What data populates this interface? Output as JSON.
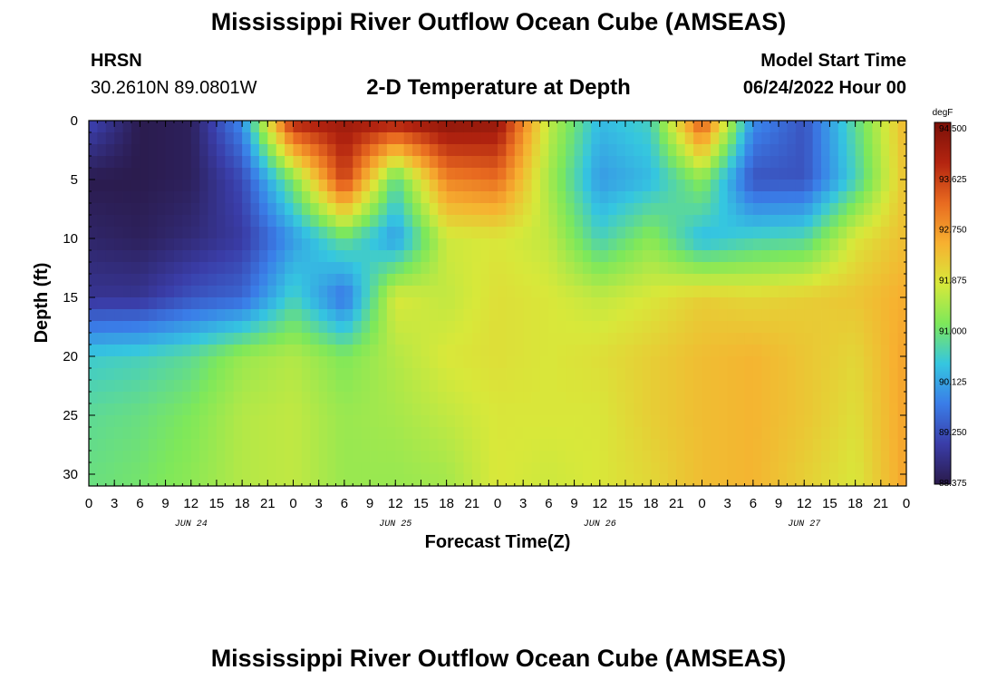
{
  "header": {
    "title": "Mississippi River Outflow Ocean Cube (AMSEAS)",
    "station_name": "HRSN",
    "station_coords": "30.2610N  89.0801W",
    "subtitle": "2-D Temperature at Depth",
    "model_start_label": "Model Start Time",
    "model_start_value": "06/24/2022 Hour 00"
  },
  "footer": {
    "title": "Mississippi River Outflow Ocean Cube (AMSEAS)"
  },
  "chart_data": {
    "type": "heatmap",
    "title": "2-D Temperature at Depth",
    "xlabel": "Forecast Time(Z)",
    "ylabel": "Depth (ft)",
    "x_hours_range": [
      0,
      96
    ],
    "y_range": [
      0,
      31
    ],
    "y_inverted": true,
    "x_tick_labels": [
      "0",
      "3",
      "6",
      "9",
      "12",
      "15",
      "18",
      "21",
      "0",
      "3",
      "6",
      "9",
      "12",
      "15",
      "18",
      "21",
      "0",
      "3",
      "6",
      "9",
      "12",
      "15",
      "18",
      "21",
      "0",
      "3",
      "6",
      "9",
      "12",
      "15",
      "18",
      "21",
      "0"
    ],
    "x_date_labels": [
      "JUN 24",
      "JUN 25",
      "JUN 26",
      "JUN 27"
    ],
    "y_ticks": [
      0,
      5,
      10,
      15,
      20,
      25,
      30
    ],
    "colorbar": {
      "unit": "degF",
      "min": 88.375,
      "max": 94.5,
      "tick_labels": [
        "94.500",
        "93.625",
        "92.750",
        "91.875",
        "91.000",
        "90.125",
        "89.250",
        "88.375"
      ],
      "colors": [
        "#2a1a4a",
        "#3a3da8",
        "#3a7de8",
        "#35c6e0",
        "#7ee85a",
        "#d8e83a",
        "#f7b030",
        "#e86a20",
        "#b32410",
        "#7a1008"
      ]
    },
    "depth_levels_ft": [
      0,
      5,
      10,
      15,
      20,
      25,
      30
    ],
    "time_hours": [
      0,
      6,
      12,
      18,
      24,
      30,
      36,
      42,
      48,
      54,
      60,
      66,
      72,
      78,
      84,
      90,
      96
    ],
    "values_degF": [
      [
        89.2,
        88.4,
        88.5,
        89.9,
        93.9,
        94.1,
        94.0,
        94.3,
        94.2,
        91.6,
        90.3,
        90.6,
        93.4,
        89.9,
        89.3,
        90.8,
        92.4
      ],
      [
        88.4,
        88.4,
        88.5,
        89.2,
        91.1,
        93.6,
        90.8,
        92.9,
        93.1,
        91.4,
        90.0,
        90.3,
        91.2,
        89.3,
        89.3,
        90.6,
        92.3
      ],
      [
        88.6,
        88.5,
        88.7,
        89.0,
        90.0,
        90.9,
        90.0,
        91.7,
        91.8,
        91.6,
        90.6,
        91.2,
        90.3,
        90.6,
        90.7,
        91.8,
        92.3
      ],
      [
        88.9,
        88.9,
        89.3,
        89.5,
        90.6,
        89.6,
        91.8,
        91.6,
        91.9,
        91.8,
        91.6,
        91.8,
        92.1,
        92.0,
        92.1,
        92.2,
        92.5
      ],
      [
        90.5,
        90.6,
        90.8,
        91.3,
        91.5,
        91.1,
        91.5,
        91.8,
        91.9,
        91.8,
        91.9,
        92.1,
        92.3,
        92.4,
        92.2,
        92.0,
        92.6
      ],
      [
        90.8,
        90.9,
        91.1,
        91.5,
        91.6,
        91.3,
        91.4,
        91.6,
        91.8,
        91.8,
        91.8,
        92.1,
        92.3,
        92.4,
        92.2,
        91.9,
        92.6
      ],
      [
        90.9,
        91.0,
        91.2,
        91.5,
        91.6,
        91.3,
        91.3,
        91.4,
        91.8,
        91.7,
        91.8,
        92.0,
        92.3,
        92.4,
        92.1,
        91.8,
        92.6
      ]
    ]
  }
}
